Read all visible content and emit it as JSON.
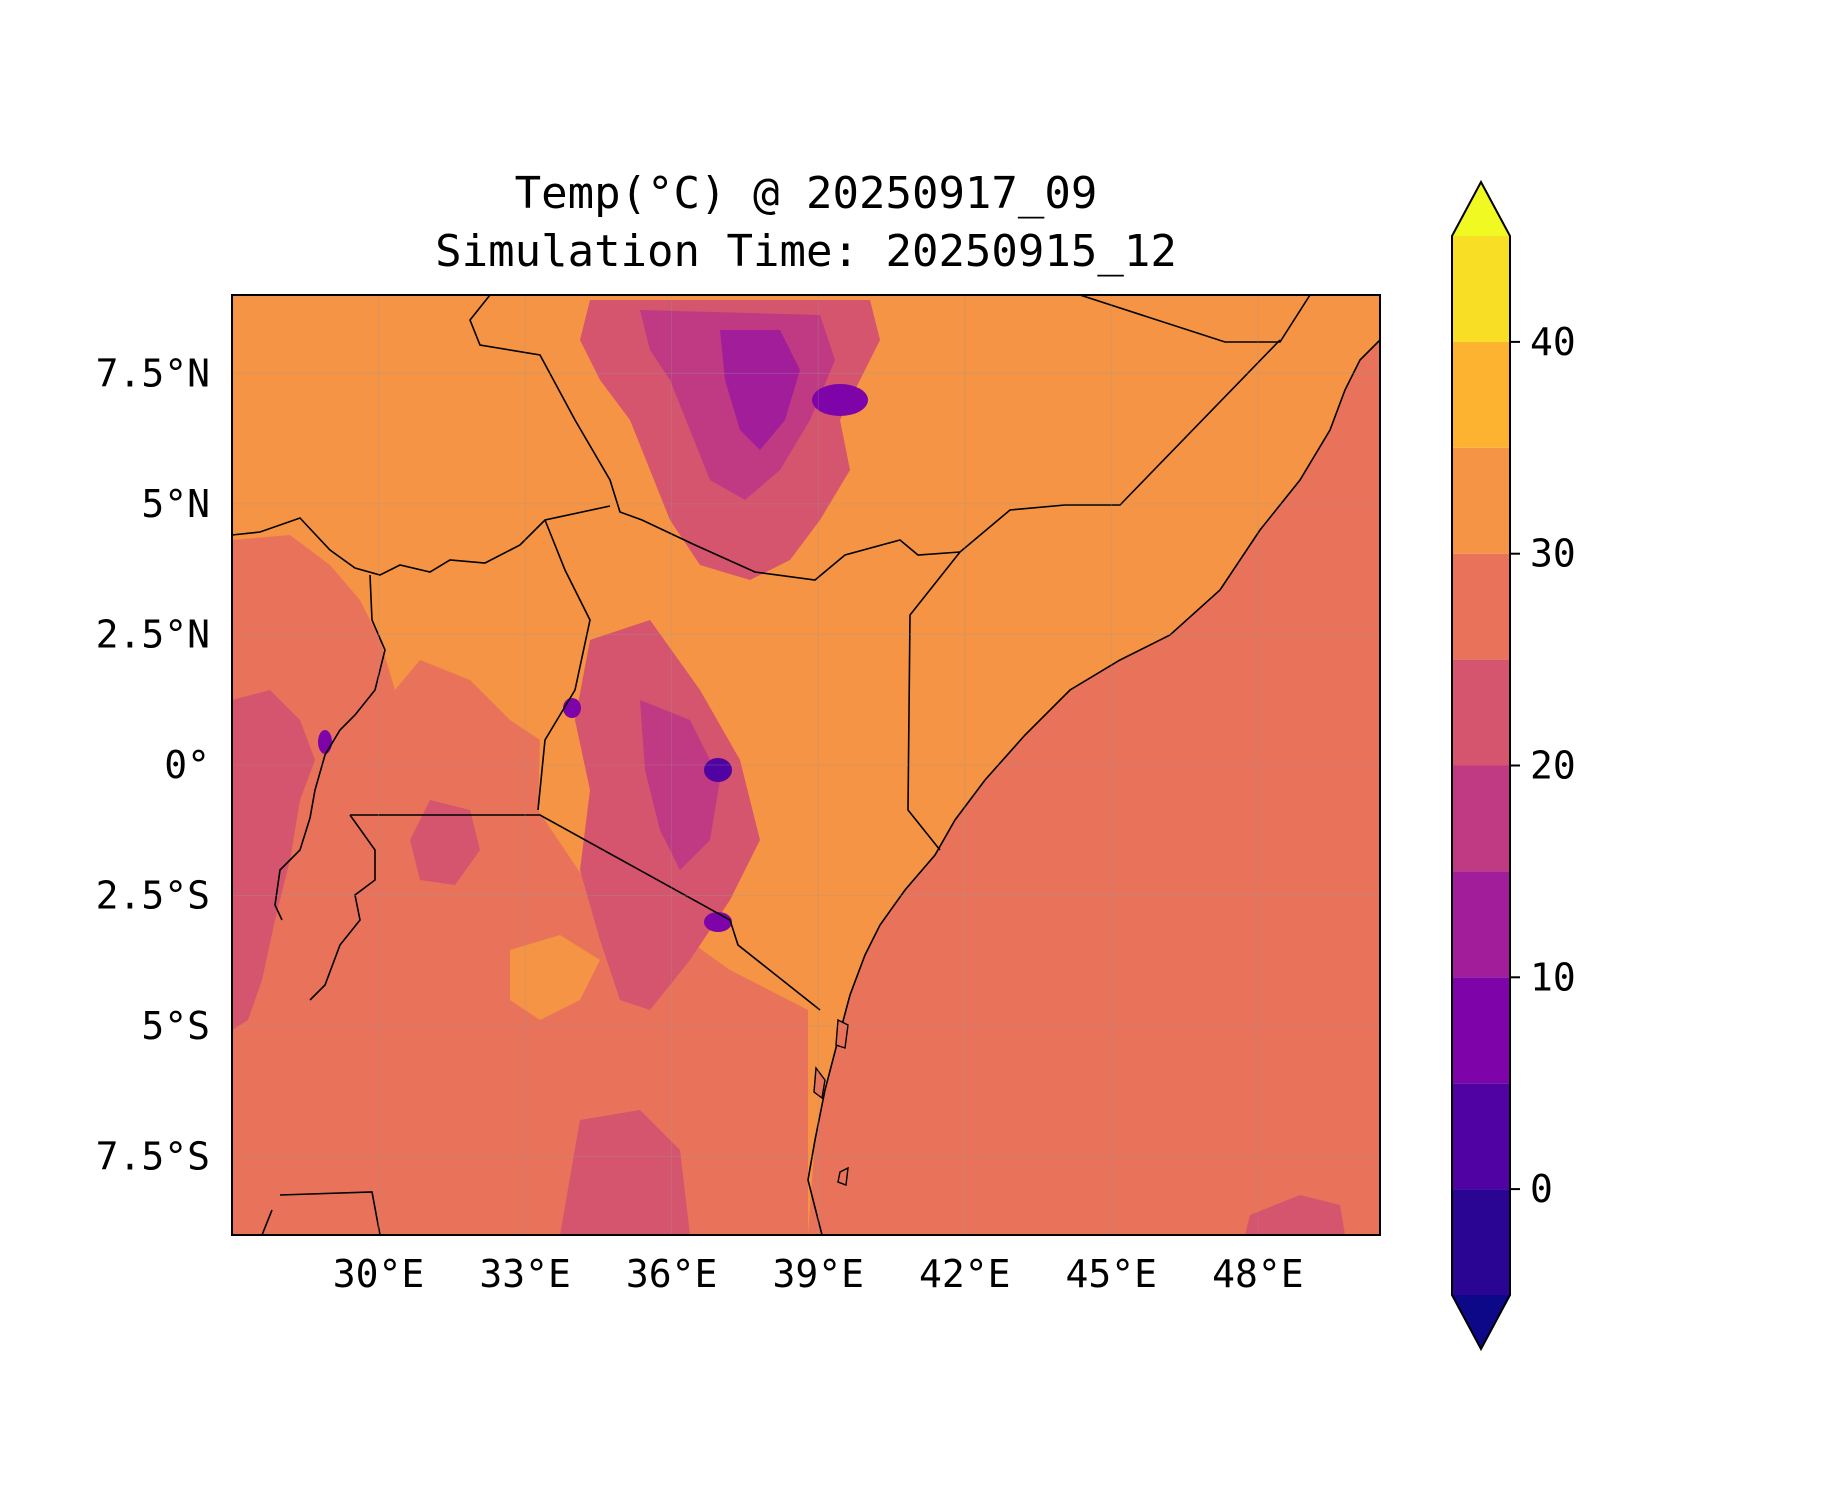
{
  "title": {
    "line1": "Temp(°C) @ 20250917_09",
    "line2": "Simulation Time: 20250915_12"
  },
  "map": {
    "lon_range": [
      27.0,
      50.5
    ],
    "lat_range": [
      -9.0,
      9.0
    ],
    "x_ticks": [
      {
        "value": 30,
        "label": "30°E"
      },
      {
        "value": 33,
        "label": "33°E"
      },
      {
        "value": 36,
        "label": "36°E"
      },
      {
        "value": 39,
        "label": "39°E"
      },
      {
        "value": 42,
        "label": "42°E"
      },
      {
        "value": 45,
        "label": "45°E"
      },
      {
        "value": 48,
        "label": "48°E"
      }
    ],
    "y_ticks": [
      {
        "value": 7.5,
        "label": "7.5°N"
      },
      {
        "value": 5,
        "label": "5°N"
      },
      {
        "value": 2.5,
        "label": "2.5°N"
      },
      {
        "value": 0,
        "label": "0°"
      },
      {
        "value": -2.5,
        "label": "2.5°S"
      },
      {
        "value": -5,
        "label": "5°S"
      },
      {
        "value": -7.5,
        "label": "7.5°S"
      }
    ],
    "grid": true,
    "ocean_color": "#e8735a",
    "land_base_color": "#f49444"
  },
  "colorbar": {
    "levels": [
      -5,
      0,
      5,
      10,
      15,
      20,
      25,
      30,
      35,
      40,
      45
    ],
    "colors": [
      "#2a0593",
      "#5002a2",
      "#7e03a8",
      "#a21d9a",
      "#c03a83",
      "#d5546e",
      "#e8735a",
      "#f49444",
      "#fdb32f",
      "#f8df25"
    ],
    "under_color": "#0d0887",
    "over_color": "#f0f921",
    "ticks": [
      {
        "value": 0,
        "label": "0"
      },
      {
        "value": 10,
        "label": "10"
      },
      {
        "value": 20,
        "label": "20"
      },
      {
        "value": 30,
        "label": "30"
      },
      {
        "value": 40,
        "label": "40"
      }
    ],
    "extend": "both"
  }
}
